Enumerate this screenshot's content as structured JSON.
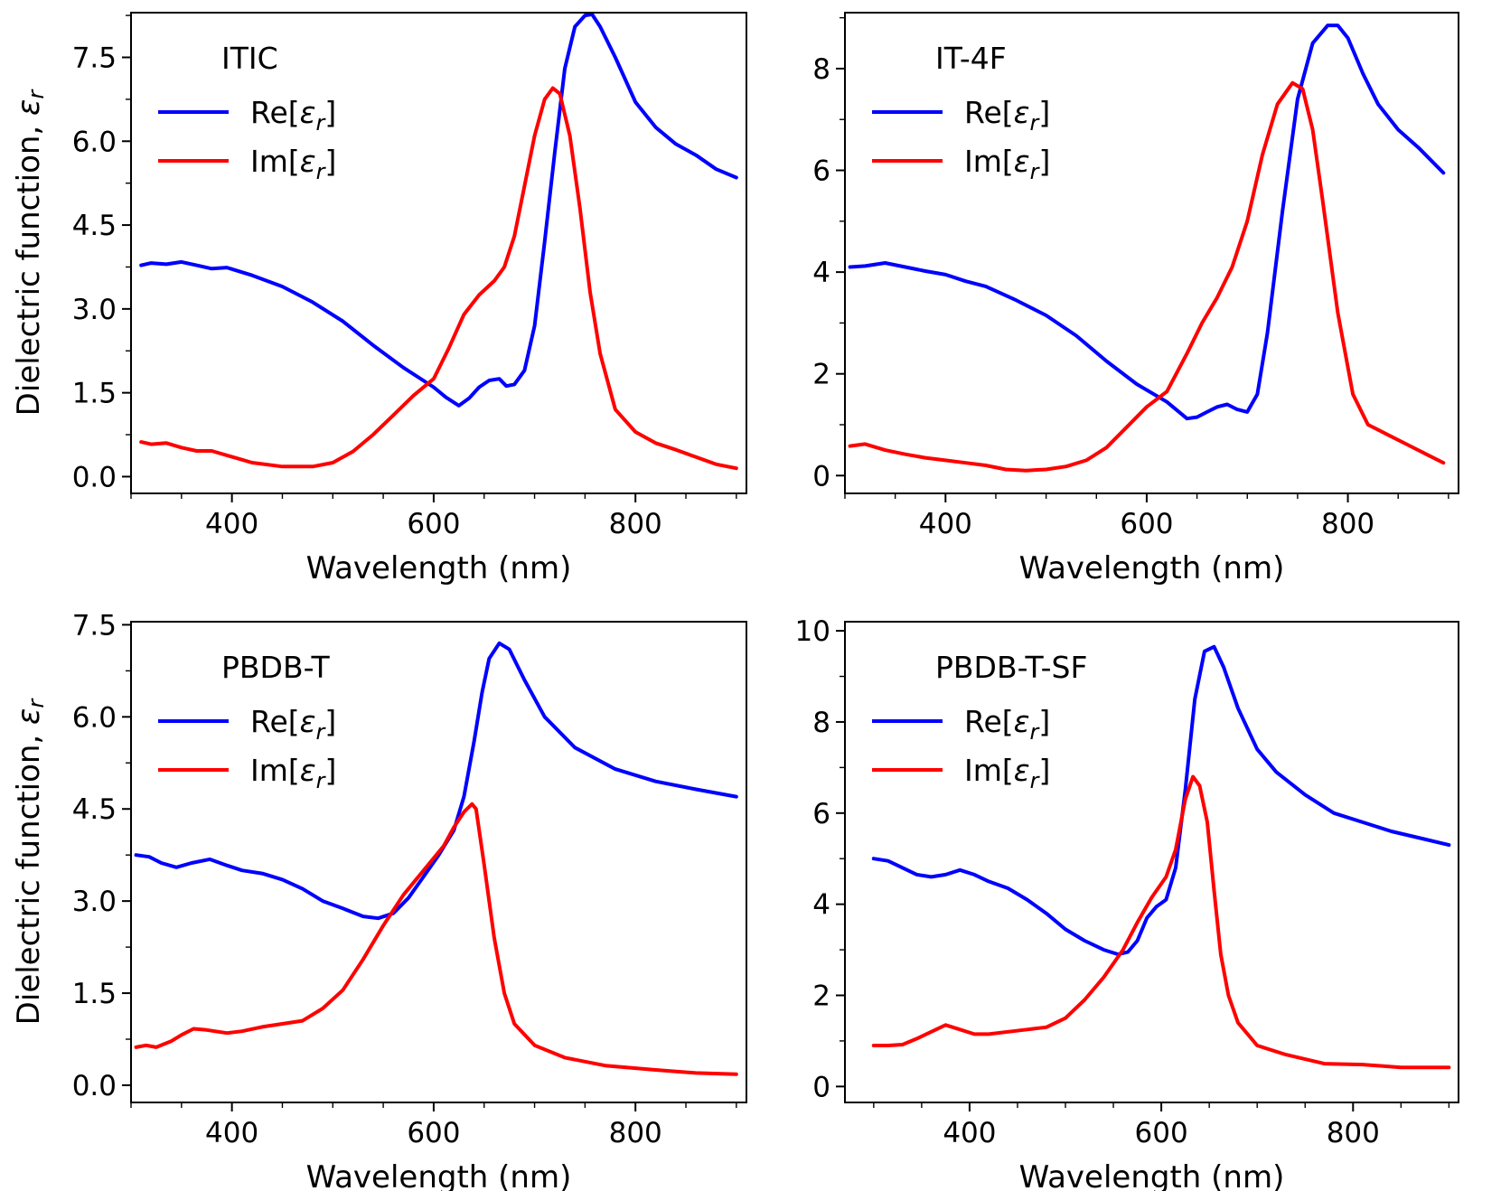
{
  "chart_data": [
    {
      "type": "line",
      "title": "ITIC",
      "xlabel": "Wavelength (nm)",
      "ylabel": "Dielectric function, εr",
      "xlim": [
        300,
        910
      ],
      "ylim": [
        -0.3,
        8.3
      ],
      "xticks": [
        400,
        600,
        800
      ],
      "xtick_labels": [
        "400",
        "600",
        "800"
      ],
      "yticks": [
        0,
        1.5,
        3,
        4.5,
        6,
        7.5
      ],
      "ytick_labels": [
        "0.0",
        "1.5",
        "3.0",
        "4.5",
        "6.0",
        "7.5"
      ],
      "legend_position": "top-left",
      "series": [
        {
          "name": "Re[εr]",
          "legend_main": "Re[",
          "legend_sym": "ε",
          "legend_sub": "r",
          "legend_end": "]",
          "color": "#0000ff",
          "x": [
            310,
            320,
            335,
            350,
            365,
            380,
            395,
            420,
            450,
            480,
            510,
            540,
            570,
            600,
            612,
            625,
            635,
            645,
            655,
            665,
            672,
            680,
            690,
            700,
            710,
            720,
            730,
            740,
            750,
            757,
            765,
            780,
            800,
            820,
            840,
            860,
            880,
            900
          ],
          "y": [
            3.78,
            3.82,
            3.8,
            3.84,
            3.78,
            3.72,
            3.74,
            3.6,
            3.4,
            3.12,
            2.78,
            2.35,
            1.95,
            1.6,
            1.42,
            1.27,
            1.4,
            1.6,
            1.72,
            1.75,
            1.62,
            1.65,
            1.9,
            2.7,
            4.2,
            5.8,
            7.3,
            8.05,
            8.25,
            8.27,
            8.05,
            7.5,
            6.7,
            6.25,
            5.95,
            5.75,
            5.5,
            5.35
          ]
        },
        {
          "name": "Im[εr]",
          "legend_main": "Im[",
          "legend_sym": "ε",
          "legend_sub": "r",
          "legend_end": "]",
          "color": "#ff0000",
          "x": [
            310,
            320,
            335,
            350,
            365,
            380,
            395,
            420,
            450,
            480,
            500,
            520,
            540,
            560,
            580,
            600,
            615,
            630,
            645,
            660,
            670,
            680,
            690,
            700,
            710,
            718,
            725,
            735,
            745,
            755,
            765,
            780,
            800,
            820,
            840,
            860,
            880,
            900
          ],
          "y": [
            0.62,
            0.58,
            0.6,
            0.52,
            0.46,
            0.46,
            0.38,
            0.25,
            0.18,
            0.18,
            0.25,
            0.45,
            0.75,
            1.1,
            1.45,
            1.75,
            2.3,
            2.9,
            3.25,
            3.5,
            3.75,
            4.3,
            5.2,
            6.1,
            6.75,
            6.95,
            6.85,
            6.1,
            4.8,
            3.3,
            2.2,
            1.2,
            0.8,
            0.6,
            0.48,
            0.35,
            0.22,
            0.15
          ]
        }
      ]
    },
    {
      "type": "line",
      "title": "IT-4F",
      "xlabel": "Wavelength (nm)",
      "ylabel": "",
      "xlim": [
        300,
        910
      ],
      "ylim": [
        -0.35,
        9.1
      ],
      "xticks": [
        400,
        600,
        800
      ],
      "xtick_labels": [
        "400",
        "600",
        "800"
      ],
      "yticks": [
        0,
        2,
        4,
        6,
        8
      ],
      "ytick_labels": [
        "0",
        "2",
        "4",
        "6",
        "8"
      ],
      "legend_position": "top-left",
      "series": [
        {
          "name": "Re[εr]",
          "legend_main": "Re[",
          "legend_sym": "ε",
          "legend_sub": "r",
          "legend_end": "]",
          "color": "#0000ff",
          "x": [
            305,
            320,
            340,
            360,
            380,
            400,
            420,
            440,
            470,
            500,
            530,
            560,
            590,
            620,
            640,
            650,
            660,
            670,
            680,
            690,
            700,
            710,
            720,
            735,
            750,
            765,
            780,
            790,
            800,
            815,
            830,
            850,
            870,
            895
          ],
          "y": [
            4.1,
            4.12,
            4.18,
            4.1,
            4.02,
            3.95,
            3.82,
            3.72,
            3.45,
            3.15,
            2.75,
            2.25,
            1.8,
            1.45,
            1.12,
            1.15,
            1.25,
            1.35,
            1.4,
            1.3,
            1.25,
            1.6,
            2.8,
            5.2,
            7.4,
            8.5,
            8.85,
            8.85,
            8.6,
            7.9,
            7.3,
            6.8,
            6.45,
            5.95
          ]
        },
        {
          "name": "Im[εr]",
          "legend_main": "Im[",
          "legend_sym": "ε",
          "legend_sub": "r",
          "legend_end": "]",
          "color": "#ff0000",
          "x": [
            305,
            320,
            340,
            360,
            380,
            400,
            420,
            440,
            460,
            480,
            500,
            520,
            540,
            560,
            580,
            600,
            620,
            640,
            655,
            670,
            685,
            700,
            715,
            730,
            745,
            755,
            765,
            775,
            790,
            805,
            820,
            840,
            860,
            880,
            895
          ],
          "y": [
            0.58,
            0.62,
            0.5,
            0.42,
            0.35,
            0.3,
            0.25,
            0.2,
            0.12,
            0.1,
            0.12,
            0.18,
            0.3,
            0.55,
            0.95,
            1.35,
            1.65,
            2.4,
            3.0,
            3.5,
            4.1,
            5.0,
            6.3,
            7.3,
            7.72,
            7.6,
            6.8,
            5.4,
            3.2,
            1.6,
            1.0,
            0.8,
            0.6,
            0.4,
            0.25
          ]
        }
      ]
    },
    {
      "type": "line",
      "title": "PBDB-T",
      "xlabel": "Wavelength (nm)",
      "ylabel": "Dielectric function, εr",
      "xlim": [
        300,
        910
      ],
      "ylim": [
        -0.28,
        7.55
      ],
      "xticks": [
        400,
        600,
        800
      ],
      "xtick_labels": [
        "400",
        "600",
        "800"
      ],
      "yticks": [
        0,
        1.5,
        3,
        4.5,
        6,
        7.5
      ],
      "ytick_labels": [
        "0.0",
        "1.5",
        "3.0",
        "4.5",
        "6.0",
        "7.5"
      ],
      "legend_position": "top-left",
      "series": [
        {
          "name": "Re[εr]",
          "legend_main": "Re[",
          "legend_sym": "ε",
          "legend_sub": "r",
          "legend_end": "]",
          "color": "#0000ff",
          "x": [
            305,
            318,
            330,
            345,
            360,
            378,
            395,
            410,
            430,
            450,
            470,
            490,
            510,
            530,
            545,
            560,
            575,
            590,
            605,
            620,
            630,
            640,
            648,
            655,
            665,
            675,
            690,
            710,
            740,
            780,
            820,
            860,
            900
          ],
          "y": [
            3.75,
            3.72,
            3.62,
            3.55,
            3.62,
            3.68,
            3.58,
            3.5,
            3.45,
            3.35,
            3.2,
            3.0,
            2.88,
            2.75,
            2.72,
            2.8,
            3.05,
            3.4,
            3.75,
            4.15,
            4.7,
            5.6,
            6.4,
            6.95,
            7.2,
            7.1,
            6.6,
            6.0,
            5.5,
            5.15,
            4.95,
            4.82,
            4.7
          ]
        },
        {
          "name": "Im[εr]",
          "legend_main": "Im[",
          "legend_sym": "ε",
          "legend_sub": "r",
          "legend_end": "]",
          "color": "#ff0000",
          "x": [
            305,
            315,
            325,
            340,
            350,
            362,
            375,
            395,
            410,
            430,
            450,
            470,
            490,
            510,
            530,
            550,
            570,
            590,
            610,
            620,
            630,
            638,
            642,
            650,
            660,
            670,
            680,
            700,
            730,
            770,
            820,
            860,
            900
          ],
          "y": [
            0.62,
            0.65,
            0.62,
            0.72,
            0.82,
            0.92,
            0.9,
            0.85,
            0.88,
            0.95,
            1.0,
            1.05,
            1.25,
            1.55,
            2.05,
            2.6,
            3.1,
            3.5,
            3.9,
            4.2,
            4.45,
            4.58,
            4.5,
            3.6,
            2.4,
            1.5,
            1.0,
            0.65,
            0.45,
            0.32,
            0.25,
            0.2,
            0.18
          ]
        }
      ]
    },
    {
      "type": "line",
      "title": "PBDB-T-SF",
      "xlabel": "Wavelength (nm)",
      "ylabel": "",
      "xlim": [
        270,
        910
      ],
      "ylim": [
        -0.35,
        10.2
      ],
      "xticks": [
        400,
        600,
        800
      ],
      "xtick_labels": [
        "400",
        "600",
        "800"
      ],
      "yticks": [
        0,
        2,
        4,
        6,
        8,
        10
      ],
      "ytick_labels": [
        "0",
        "2",
        "4",
        "6",
        "8",
        "10"
      ],
      "legend_position": "top-left",
      "series": [
        {
          "name": "Re[εr]",
          "legend_main": "Re[",
          "legend_sym": "ε",
          "legend_sub": "r",
          "legend_end": "]",
          "color": "#0000ff",
          "x": [
            300,
            315,
            330,
            345,
            360,
            375,
            390,
            405,
            420,
            440,
            460,
            480,
            500,
            520,
            540,
            555,
            565,
            575,
            585,
            595,
            605,
            615,
            625,
            635,
            645,
            655,
            665,
            680,
            700,
            720,
            750,
            780,
            810,
            840,
            870,
            900
          ],
          "y": [
            5.0,
            4.95,
            4.8,
            4.65,
            4.6,
            4.65,
            4.75,
            4.65,
            4.5,
            4.35,
            4.1,
            3.8,
            3.45,
            3.2,
            3.0,
            2.9,
            2.95,
            3.2,
            3.7,
            3.95,
            4.1,
            4.8,
            6.5,
            8.5,
            9.55,
            9.65,
            9.2,
            8.3,
            7.4,
            6.9,
            6.4,
            6.0,
            5.8,
            5.6,
            5.45,
            5.3
          ]
        },
        {
          "name": "Im[εr]",
          "legend_main": "Im[",
          "legend_sym": "ε",
          "legend_sub": "r",
          "legend_end": "]",
          "color": "#ff0000",
          "x": [
            300,
            315,
            330,
            345,
            360,
            375,
            390,
            405,
            420,
            440,
            460,
            480,
            500,
            520,
            540,
            560,
            575,
            590,
            605,
            615,
            625,
            633,
            640,
            648,
            655,
            662,
            670,
            680,
            700,
            730,
            770,
            810,
            850,
            900
          ],
          "y": [
            0.9,
            0.9,
            0.92,
            1.05,
            1.2,
            1.35,
            1.25,
            1.15,
            1.15,
            1.2,
            1.25,
            1.3,
            1.5,
            1.9,
            2.4,
            3.0,
            3.6,
            4.15,
            4.6,
            5.2,
            6.3,
            6.8,
            6.6,
            5.8,
            4.3,
            2.9,
            2.0,
            1.4,
            0.9,
            0.7,
            0.5,
            0.48,
            0.42,
            0.42
          ]
        }
      ]
    }
  ]
}
